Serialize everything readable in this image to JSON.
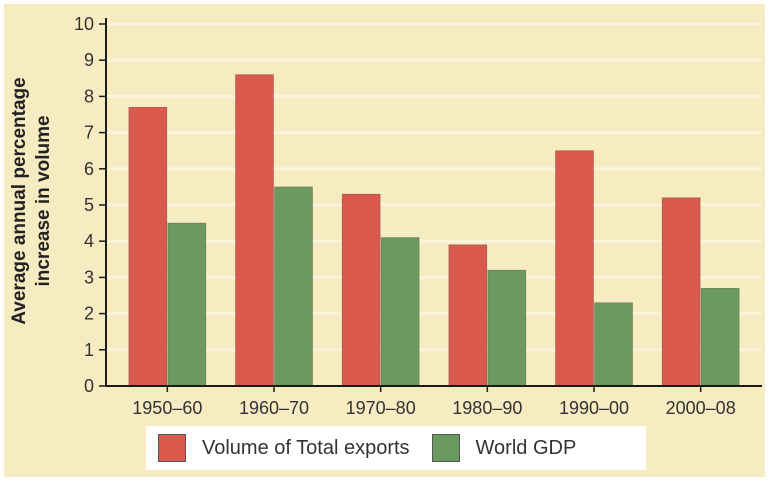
{
  "chart_data": {
    "type": "bar",
    "title": "",
    "xlabel": "",
    "ylabel": "Average annual percentage increase in volume",
    "ylabel_lines": [
      "Average annual percentage",
      "increase in volume"
    ],
    "categories": [
      "1950–60",
      "1960–70",
      "1970–80",
      "1980–90",
      "1990–00",
      "2000–08"
    ],
    "series": [
      {
        "name": "Volume of Total exports",
        "color": "#d95a4d",
        "values": [
          7.7,
          8.6,
          5.3,
          3.9,
          6.5,
          5.2
        ]
      },
      {
        "name": "World GDP",
        "color": "#6b9a5f",
        "values": [
          4.5,
          5.5,
          4.1,
          3.2,
          2.3,
          2.7
        ]
      }
    ],
    "yticks": [
      0,
      1,
      2,
      3,
      4,
      5,
      6,
      7,
      8,
      9,
      10
    ],
    "ylim": [
      0,
      10
    ],
    "grid": true,
    "legend_position": "bottom"
  },
  "colors": {
    "background": "#f7ebc2",
    "gridline": "#fbf4dd",
    "axis": "#1a1a1a"
  }
}
